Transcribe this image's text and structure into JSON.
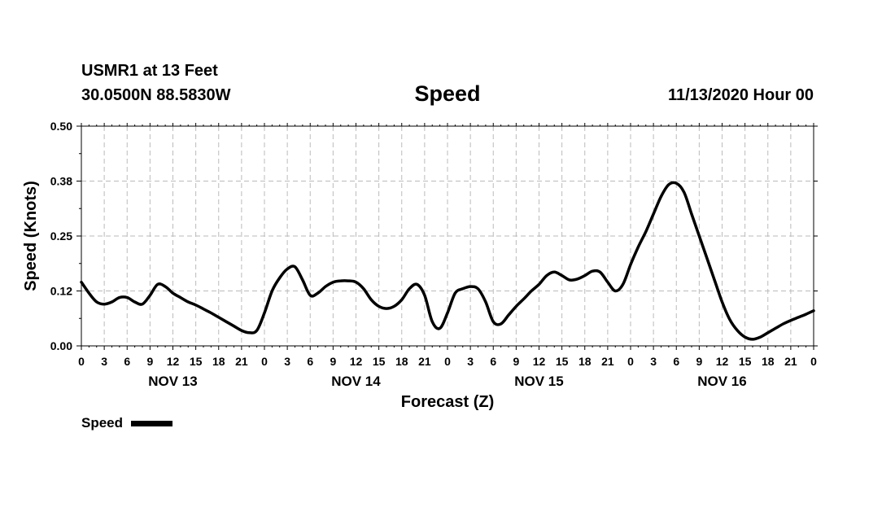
{
  "header": {
    "station": "USMR1 at 13 Feet",
    "location": "30.0500N 88.5830W",
    "datetime": "11/13/2020 Hour 00"
  },
  "chart_data": {
    "type": "line",
    "title": "Speed",
    "xlabel": "Forecast (Z)",
    "ylabel": "Speed (Knots)",
    "xlim": [
      0,
      96
    ],
    "ylim": [
      0,
      0.5
    ],
    "yticks": [
      0.0,
      0.125,
      0.25,
      0.375,
      0.5
    ],
    "ytick_labels": [
      "0.00",
      "0.12",
      "0.25",
      "0.38",
      "0.50"
    ],
    "xtick_labels": [
      "0",
      "3",
      "6",
      "9",
      "12",
      "15",
      "18",
      "21",
      "0",
      "3",
      "6",
      "9",
      "12",
      "15",
      "18",
      "21",
      "0",
      "3",
      "6",
      "9",
      "12",
      "15",
      "18",
      "21",
      "0",
      "3",
      "6",
      "9",
      "12",
      "15",
      "18",
      "21",
      "0"
    ],
    "day_labels": [
      "NOV 13",
      "NOV 14",
      "NOV 15",
      "NOV 16"
    ],
    "day_label_hours": [
      12,
      36,
      60,
      84
    ],
    "grid": true,
    "legend": {
      "label": "Speed",
      "color": "#000000",
      "position": "bottom-left"
    },
    "series": [
      {
        "name": "Speed",
        "color": "#000000",
        "x": [
          0,
          1,
          2,
          3,
          4,
          5,
          6,
          7,
          8,
          9,
          10,
          11,
          12,
          13,
          14,
          15,
          16,
          17,
          18,
          19,
          20,
          21,
          22,
          23,
          24,
          25,
          26,
          27,
          28,
          29,
          30,
          31,
          32,
          33,
          34,
          35,
          36,
          37,
          38,
          39,
          40,
          41,
          42,
          43,
          44,
          45,
          46,
          47,
          48,
          49,
          50,
          51,
          52,
          53,
          54,
          55,
          56,
          57,
          58,
          59,
          60,
          61,
          62,
          63,
          64,
          65,
          66,
          67,
          68,
          69,
          70,
          71,
          72,
          73,
          74,
          75,
          76,
          77,
          78,
          79,
          80,
          81,
          82,
          83,
          84,
          85,
          86,
          87,
          88,
          89,
          90,
          91,
          92,
          93,
          94,
          95,
          96
        ],
        "values": [
          0.145,
          0.12,
          0.1,
          0.095,
          0.1,
          0.11,
          0.11,
          0.1,
          0.095,
          0.115,
          0.14,
          0.135,
          0.12,
          0.11,
          0.1,
          0.093,
          0.084,
          0.075,
          0.065,
          0.055,
          0.045,
          0.035,
          0.03,
          0.035,
          0.075,
          0.125,
          0.155,
          0.175,
          0.18,
          0.15,
          0.115,
          0.12,
          0.135,
          0.145,
          0.148,
          0.148,
          0.145,
          0.13,
          0.105,
          0.09,
          0.085,
          0.09,
          0.105,
          0.13,
          0.14,
          0.115,
          0.055,
          0.04,
          0.075,
          0.12,
          0.13,
          0.135,
          0.13,
          0.1,
          0.055,
          0.05,
          0.07,
          0.09,
          0.107,
          0.125,
          0.14,
          0.16,
          0.168,
          0.16,
          0.15,
          0.152,
          0.16,
          0.17,
          0.168,
          0.145,
          0.125,
          0.14,
          0.185,
          0.225,
          0.26,
          0.3,
          0.34,
          0.367,
          0.37,
          0.35,
          0.3,
          0.25,
          0.2,
          0.15,
          0.1,
          0.06,
          0.035,
          0.02,
          0.015,
          0.02,
          0.03,
          0.04,
          0.05,
          0.058,
          0.065,
          0.072,
          0.08
        ]
      }
    ]
  }
}
